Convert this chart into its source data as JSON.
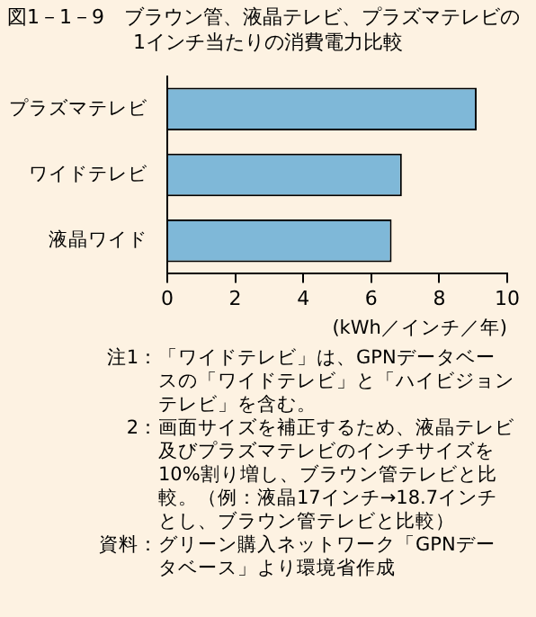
{
  "chart_data": {
    "type": "bar",
    "orientation": "horizontal",
    "title": "図1－1－9　ブラウン管、液晶テレビ、プラズマテレビの1インチ当たりの消費電力比較",
    "categories": [
      "プラズマテレビ",
      "ワイドテレビ",
      "液晶ワイド"
    ],
    "values": [
      9.1,
      6.9,
      6.6
    ],
    "color": "#7fb8d8",
    "xlim": [
      0,
      10
    ],
    "xticks": [
      0,
      2,
      4,
      6,
      8,
      10
    ],
    "xlabel": "(kWh／インチ／年)",
    "grid": false,
    "legend": false,
    "annotations": [
      "注1：「ワイドテレビ」は、GPNデータベースの「ワイドテレビ」と「ハイビジョンテレビ」を含む。",
      "2：画面サイズを補正するため、液晶テレビ及びプラズマテレビのインチサイズを10%割り増し、ブラウン管テレビと比較。（例：液晶17インチ→18.7インチとし、ブラウン管テレビと比較）",
      "資料：グリーン購入ネットワーク「GPNデータベース」より環境省作成"
    ]
  }
}
